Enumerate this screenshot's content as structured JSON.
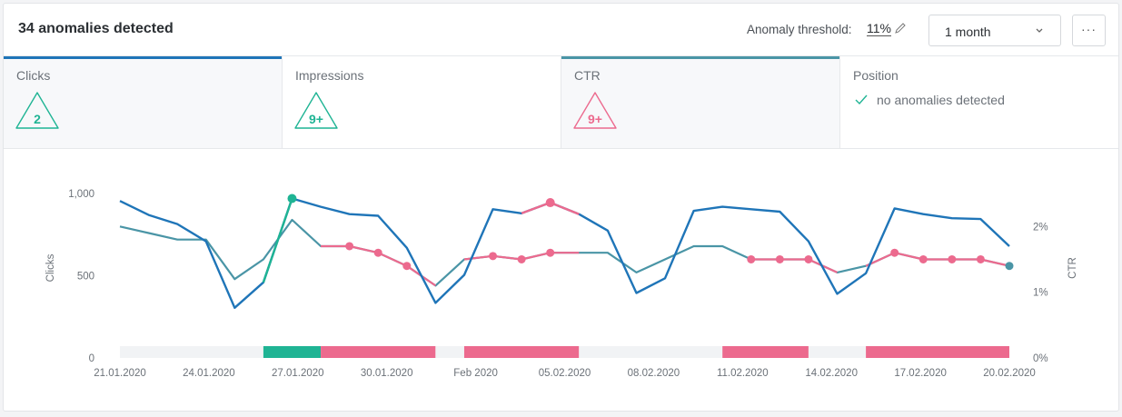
{
  "header": {
    "title": "34 anomalies detected",
    "threshold_label": "Anomaly threshold:",
    "threshold_value": "11%",
    "period_select": "1 month",
    "more_label": "···"
  },
  "tabs": [
    {
      "label": "Clicks",
      "badge": "2",
      "color": "#1fb494",
      "bar_color": "#1f75b8",
      "active": true
    },
    {
      "label": "Impressions",
      "badge": "9+",
      "color": "#1fb494",
      "bar_color": "",
      "active": false
    },
    {
      "label": "CTR",
      "badge": "9+",
      "color": "#ec6a8e",
      "bar_color": "#4a95a6",
      "active": true
    },
    {
      "label": "Position",
      "status": "no anomalies detected",
      "color": "#1fb494",
      "active": false
    }
  ],
  "chart_data": {
    "type": "line",
    "x_labels": [
      "21.01.2020",
      "24.01.2020",
      "27.01.2020",
      "30.01.2020",
      "Feb 2020",
      "05.02.2020",
      "08.02.2020",
      "11.02.2020",
      "14.02.2020",
      "17.02.2020",
      "20.02.2020"
    ],
    "ylabel_left": "Clicks",
    "ylabel_right": "CTR",
    "left_ticks": [
      "1,000",
      "500",
      "0"
    ],
    "right_ticks": [
      "2%",
      "1%",
      "0%"
    ],
    "ylim_left": [
      0,
      1100
    ],
    "ylim_right": [
      0,
      2.75
    ],
    "series": [
      {
        "name": "Clicks",
        "color": "#1f75b8",
        "axis": "left",
        "values": [
          955,
          870,
          815,
          710,
          305,
          460,
          970,
          920,
          875,
          865,
          670,
          335,
          505,
          905,
          880,
          945,
          875,
          775,
          395,
          485,
          895,
          920,
          905,
          890,
          710,
          390,
          515,
          910,
          875,
          850,
          845,
          680
        ]
      },
      {
        "name": "CTR",
        "color": "#4a95a6",
        "axis": "right",
        "values": [
          2.0,
          1.9,
          1.8,
          1.8,
          1.2,
          1.5,
          2.1,
          1.7,
          1.7,
          1.6,
          1.4,
          1.1,
          1.5,
          1.55,
          1.5,
          1.6,
          1.6,
          1.6,
          1.3,
          1.5,
          1.7,
          1.7,
          1.5,
          1.5,
          1.5,
          1.3,
          1.4,
          1.6,
          1.5,
          1.5,
          1.5,
          1.4
        ]
      }
    ],
    "anomalies": {
      "clicks_green": [
        5,
        6
      ],
      "clicks_dot": [
        6
      ],
      "ctr_pink_segments": [
        [
          7,
          11
        ],
        [
          12,
          16
        ],
        [
          22,
          25
        ],
        [
          26,
          31
        ]
      ],
      "ctr_dots": [
        8,
        9,
        10,
        13,
        14,
        15,
        22,
        23,
        24,
        27,
        28,
        29,
        30
      ],
      "pink_clicks_segment": [
        14,
        16
      ],
      "pink_clicks_dots": [
        15
      ]
    },
    "timeline": [
      {
        "from": 0,
        "to": 5,
        "color": "#f1f3f5"
      },
      {
        "from": 5,
        "to": 7,
        "color": "#1fb494"
      },
      {
        "from": 7,
        "to": 11,
        "color": "#ec6a8e"
      },
      {
        "from": 11,
        "to": 12,
        "color": "#f1f3f5"
      },
      {
        "from": 12,
        "to": 16,
        "color": "#ec6a8e"
      },
      {
        "from": 16,
        "to": 21,
        "color": "#f1f3f5"
      },
      {
        "from": 21,
        "to": 24,
        "color": "#ec6a8e"
      },
      {
        "from": 24,
        "to": 26,
        "color": "#f1f3f5"
      },
      {
        "from": 26,
        "to": 31,
        "color": "#ec6a8e"
      }
    ]
  }
}
